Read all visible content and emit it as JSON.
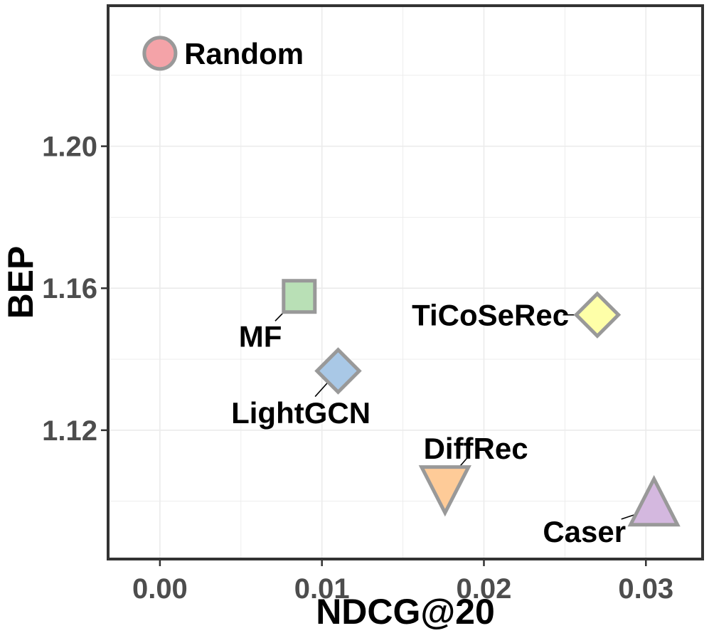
{
  "chart_data": {
    "type": "scatter",
    "title": "",
    "xlabel": "NDCG@20",
    "ylabel": "BEP",
    "xlim": [
      -0.0032,
      0.0335
    ],
    "ylim": [
      1.0837,
      1.2396
    ],
    "x_ticks": [
      {
        "value": 0.0,
        "label": "0.00"
      },
      {
        "value": 0.01,
        "label": "0.01"
      },
      {
        "value": 0.02,
        "label": "0.02"
      },
      {
        "value": 0.03,
        "label": "0.03"
      }
    ],
    "y_ticks": [
      {
        "value": 1.12,
        "label": "1.12"
      },
      {
        "value": 1.16,
        "label": "1.16"
      },
      {
        "value": 1.2,
        "label": "1.20"
      }
    ],
    "grid": true,
    "legend": "none",
    "points": [
      {
        "label": "Random",
        "x": 0.0,
        "y": 1.2262,
        "shape": "circle",
        "color": "#f4a3a8",
        "label_x": 0.0015,
        "label_y": 1.2262,
        "anchor": "start"
      },
      {
        "label": "MF",
        "x": 0.0086,
        "y": 1.1577,
        "shape": "square",
        "color": "#b9e0b6",
        "label_x": 0.0062,
        "label_y": 1.1465,
        "anchor": "middle"
      },
      {
        "label": "LightGCN",
        "x": 0.011,
        "y": 1.1367,
        "shape": "diamond",
        "color": "#a9c8e6",
        "label_x": 0.0087,
        "label_y": 1.125,
        "anchor": "middle"
      },
      {
        "label": "TiCoSeRec",
        "x": 0.027,
        "y": 1.1525,
        "shape": "diamond",
        "color": "#feffa8",
        "label_x": 0.0204,
        "label_y": 1.1525,
        "anchor": "middle"
      },
      {
        "label": "DiffRec",
        "x": 0.0176,
        "y": 1.105,
        "shape": "triangle-down",
        "color": "#fecb98",
        "label_x": 0.0195,
        "label_y": 1.115,
        "anchor": "middle"
      },
      {
        "label": "Caser",
        "x": 0.0305,
        "y": 1.098,
        "shape": "triangle-up",
        "color": "#d4b8df",
        "label_x": 0.0262,
        "label_y": 1.0915,
        "anchor": "middle"
      }
    ]
  }
}
